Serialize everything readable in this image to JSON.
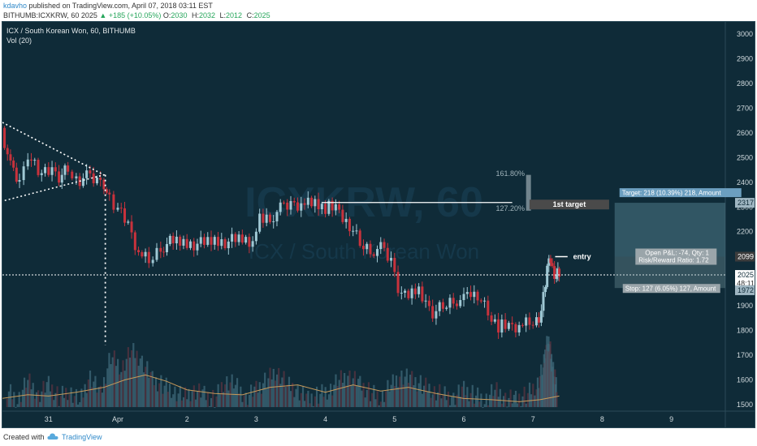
{
  "header": {
    "author": "kdavho",
    "published": " published on TradingView.com, April 07, 2018 03:11 EST",
    "symbol": "BITHUMB:ICXKRW, 60",
    "last": "2025",
    "change": "▲ +185 (+10.05%)",
    "o_label": "O:",
    "o": "2030",
    "h_label": "H:",
    "h": "2032",
    "l_label": "L:",
    "l": "2012",
    "c_label": "C:",
    "c": "2025"
  },
  "footer": {
    "created": "Created with",
    "brand": "TradingView"
  },
  "chart_data": {
    "type": "candlestick",
    "title": "ICX / South Korean Won, 60, BITHUMB",
    "subtitle": "Vol (20)",
    "watermark_main": "ICXKRW, 60",
    "watermark_sub": "ICX / South Korean Won",
    "ylim": [
      1440,
      3040
    ],
    "y_ticks": [
      3000,
      2900,
      2800,
      2700,
      2600,
      2500,
      2400,
      2300,
      2200,
      2100,
      2000,
      1900,
      1800,
      1700,
      1600,
      1500
    ],
    "x_ticks": [
      {
        "label": "31",
        "day": -1
      },
      {
        "label": "Apr",
        "day": 0
      },
      {
        "label": "2",
        "day": 1
      },
      {
        "label": "3",
        "day": 2
      },
      {
        "label": "4",
        "day": 3
      },
      {
        "label": "5",
        "day": 4
      },
      {
        "label": "6",
        "day": 5
      },
      {
        "label": "7",
        "day": 6
      },
      {
        "label": "8",
        "day": 7
      },
      {
        "label": "9",
        "day": 8
      }
    ],
    "price_labels": [
      {
        "text": "2317",
        "price": 2317,
        "style": "light"
      },
      {
        "text": "2099",
        "price": 2099,
        "style": "dark"
      },
      {
        "text": "2025",
        "price": 2025,
        "style": "white"
      },
      {
        "text": "48:11",
        "price": 1990,
        "style": "plain"
      },
      {
        "text": "1972",
        "price": 1963,
        "style": "light"
      }
    ],
    "annotations": {
      "fib_high": "161.80%",
      "fib_low": "127.20%",
      "first_target": "1st target",
      "entry": "entry",
      "target_box": "Target: 218 (10.39%) 218, Amount",
      "pnl_box": "Open P&L: -74, Qty: 1",
      "rr_box": "Risk/Reward Ratio: 1.72",
      "stop_box": "Stop: 127 (6.05%) 127, Amount"
    },
    "levels": {
      "current": 2025,
      "resistance": 2318,
      "target": 2317,
      "entry": 2099,
      "stop": 1972,
      "fib_top": 2430,
      "fib_bottom": 2285,
      "first_target": 2310
    },
    "colors": {
      "background": "#0f2b38",
      "up": "#9fc8d4",
      "down": "#c8323c",
      "volume": "#3f6a7a",
      "ma": "#c89a5a",
      "target_zone": "#4e7a88"
    },
    "price_path": [
      [
        -1.68,
        2620
      ],
      [
        -1.55,
        2460
      ],
      [
        -1.42,
        2395
      ],
      [
        -1.3,
        2520
      ],
      [
        -1.2,
        2470
      ],
      [
        -1.1,
        2430
      ],
      [
        -0.95,
        2440
      ],
      [
        -0.85,
        2420
      ],
      [
        -0.72,
        2450
      ],
      [
        -0.6,
        2410
      ],
      [
        -0.45,
        2420
      ],
      [
        -0.3,
        2405
      ],
      [
        -0.2,
        2400
      ],
      [
        -0.12,
        2330
      ],
      [
        0.0,
        2290
      ],
      [
        0.15,
        2220
      ],
      [
        0.3,
        2110
      ],
      [
        0.45,
        2080
      ],
      [
        0.62,
        2140
      ],
      [
        0.8,
        2160
      ],
      [
        1.0,
        2155
      ],
      [
        1.2,
        2150
      ],
      [
        1.4,
        2165
      ],
      [
        1.6,
        2160
      ],
      [
        1.8,
        2170
      ],
      [
        1.95,
        2155
      ],
      [
        2.05,
        2245
      ],
      [
        2.2,
        2260
      ],
      [
        2.35,
        2290
      ],
      [
        2.5,
        2310
      ],
      [
        2.65,
        2315
      ],
      [
        2.85,
        2318
      ],
      [
        3.0,
        2300
      ],
      [
        3.15,
        2290
      ],
      [
        3.35,
        2230
      ],
      [
        3.5,
        2150
      ],
      [
        3.65,
        2130
      ],
      [
        3.8,
        2130
      ],
      [
        3.95,
        2080
      ],
      [
        4.05,
        1980
      ],
      [
        4.15,
        1940
      ],
      [
        4.3,
        1975
      ],
      [
        4.45,
        1900
      ],
      [
        4.55,
        1870
      ],
      [
        4.7,
        1895
      ],
      [
        4.85,
        1930
      ],
      [
        5.0,
        1920
      ],
      [
        5.1,
        1950
      ],
      [
        5.2,
        1950
      ],
      [
        5.35,
        1875
      ],
      [
        5.5,
        1820
      ],
      [
        5.65,
        1810
      ],
      [
        5.8,
        1815
      ],
      [
        5.95,
        1830
      ],
      [
        6.05,
        1840
      ],
      [
        6.12,
        1880
      ],
      [
        6.18,
        1990
      ],
      [
        6.23,
        2120
      ],
      [
        6.28,
        2040
      ],
      [
        6.34,
        2020
      ],
      [
        6.38,
        2025
      ]
    ],
    "volumes": [
      [
        -1.6,
        1560
      ],
      [
        -1.45,
        1520
      ],
      [
        -1.3,
        1600
      ],
      [
        -1.15,
        1540
      ],
      [
        -1.0,
        1580
      ],
      [
        -0.85,
        1530
      ],
      [
        -0.7,
        1560
      ],
      [
        -0.55,
        1510
      ],
      [
        -0.4,
        1620
      ],
      [
        -0.25,
        1540
      ],
      [
        -0.1,
        1700
      ],
      [
        0.05,
        1650
      ],
      [
        0.2,
        1720
      ],
      [
        0.35,
        1680
      ],
      [
        0.5,
        1600
      ],
      [
        0.65,
        1580
      ],
      [
        0.8,
        1560
      ],
      [
        0.95,
        1530
      ],
      [
        1.1,
        1560
      ],
      [
        1.25,
        1540
      ],
      [
        1.4,
        1520
      ],
      [
        1.55,
        1600
      ],
      [
        1.7,
        1580
      ],
      [
        1.85,
        1530
      ],
      [
        2.0,
        1560
      ],
      [
        2.15,
        1600
      ],
      [
        2.3,
        1640
      ],
      [
        2.45,
        1580
      ],
      [
        2.6,
        1560
      ],
      [
        2.75,
        1520
      ],
      [
        2.9,
        1540
      ],
      [
        3.05,
        1560
      ],
      [
        3.2,
        1600
      ],
      [
        3.35,
        1620
      ],
      [
        3.5,
        1580
      ],
      [
        3.65,
        1550
      ],
      [
        3.8,
        1530
      ],
      [
        3.95,
        1580
      ],
      [
        4.1,
        1620
      ],
      [
        4.25,
        1600
      ],
      [
        4.4,
        1580
      ],
      [
        4.55,
        1560
      ],
      [
        4.7,
        1540
      ],
      [
        4.85,
        1530
      ],
      [
        5.0,
        1560
      ],
      [
        5.15,
        1540
      ],
      [
        5.3,
        1520
      ],
      [
        5.45,
        1560
      ],
      [
        5.6,
        1530
      ],
      [
        5.75,
        1520
      ],
      [
        5.9,
        1540
      ],
      [
        6.05,
        1580
      ],
      [
        6.15,
        1650
      ],
      [
        6.2,
        1760
      ],
      [
        6.25,
        1720
      ],
      [
        6.3,
        1620
      ],
      [
        6.35,
        1580
      ]
    ],
    "volume_ma": [
      [
        -1.68,
        1525
      ],
      [
        -1.3,
        1540
      ],
      [
        -1.0,
        1535
      ],
      [
        -0.6,
        1550
      ],
      [
        -0.2,
        1570
      ],
      [
        0.1,
        1600
      ],
      [
        0.4,
        1620
      ],
      [
        0.7,
        1595
      ],
      [
        1.0,
        1560
      ],
      [
        1.4,
        1545
      ],
      [
        1.8,
        1540
      ],
      [
        2.2,
        1570
      ],
      [
        2.6,
        1580
      ],
      [
        3.0,
        1550
      ],
      [
        3.4,
        1580
      ],
      [
        3.8,
        1555
      ],
      [
        4.2,
        1570
      ],
      [
        4.6,
        1545
      ],
      [
        5.0,
        1525
      ],
      [
        5.4,
        1520
      ],
      [
        5.8,
        1512
      ],
      [
        6.1,
        1520
      ],
      [
        6.38,
        1535
      ]
    ]
  }
}
